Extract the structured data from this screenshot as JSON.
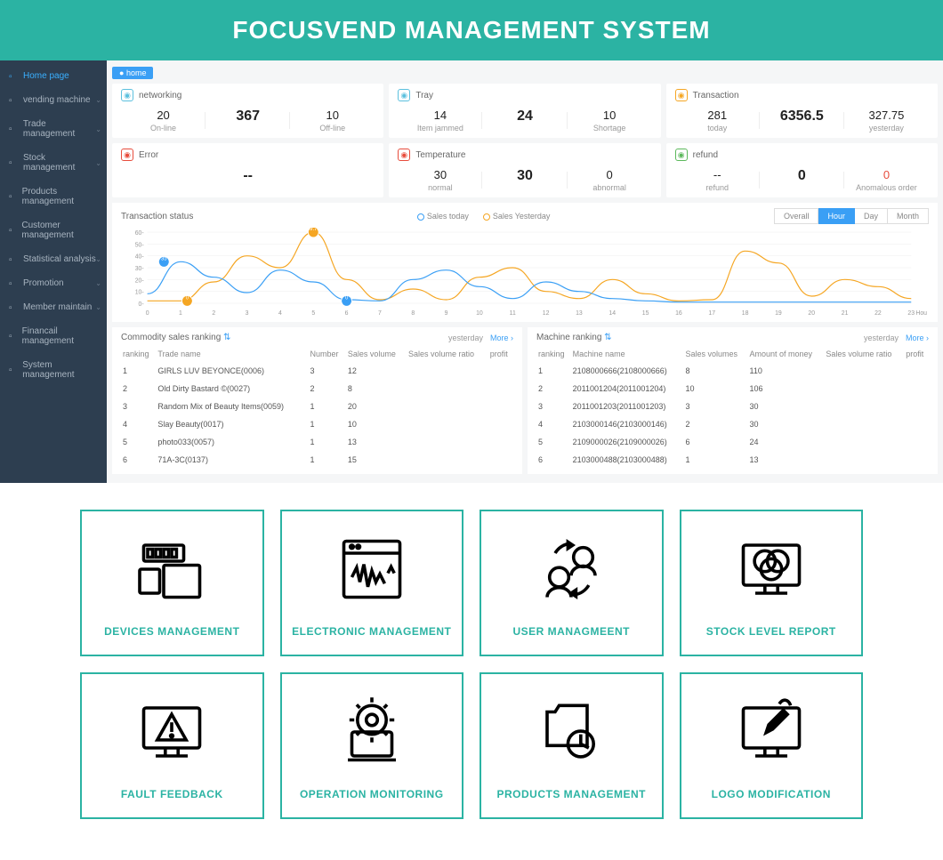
{
  "banner": {
    "title": "FOCUSVEND MANAGEMENT SYSTEM"
  },
  "colors": {
    "brand": "#2bb3a3",
    "sidebar": "#2d3e50",
    "primary_blue": "#3a9ff5",
    "orange": "#f5a623",
    "red": "#e74c3c",
    "grid": "#eeeeee",
    "text_muted": "#999999"
  },
  "sidebar": {
    "items": [
      {
        "label": "Home page",
        "active": true,
        "chevron": false
      },
      {
        "label": "vending machine",
        "active": false,
        "chevron": true
      },
      {
        "label": "Trade management",
        "active": false,
        "chevron": true
      },
      {
        "label": "Stock management",
        "active": false,
        "chevron": true
      },
      {
        "label": "Products management",
        "active": false,
        "chevron": false
      },
      {
        "label": "Customer management",
        "active": false,
        "chevron": false
      },
      {
        "label": "Statistical analysis",
        "active": false,
        "chevron": true
      },
      {
        "label": "Promotion",
        "active": false,
        "chevron": true
      },
      {
        "label": "Member maintain",
        "active": false,
        "chevron": true
      },
      {
        "label": "Financail management",
        "active": false,
        "chevron": false
      },
      {
        "label": "System management",
        "active": false,
        "chevron": false
      }
    ]
  },
  "breadcrumb": {
    "home": "home"
  },
  "cards": {
    "networking": {
      "title": "networking",
      "icon_color": "#5bc0de",
      "stats": [
        {
          "value": "20",
          "label": "On-line"
        },
        {
          "value": "367",
          "label": "",
          "big": true
        },
        {
          "value": "10",
          "label": "Off-line"
        }
      ]
    },
    "tray": {
      "title": "Tray",
      "icon_color": "#5bc0de",
      "stats": [
        {
          "value": "14",
          "label": "Item jammed"
        },
        {
          "value": "24",
          "label": "",
          "big": true
        },
        {
          "value": "10",
          "label": "Shortage"
        }
      ]
    },
    "transaction": {
      "title": "Transaction",
      "icon_color": "#f5a623",
      "stats": [
        {
          "value": "281",
          "label": "today"
        },
        {
          "value": "6356.5",
          "label": "",
          "big": true
        },
        {
          "value": "327.75",
          "label": "yesterday"
        }
      ]
    },
    "error": {
      "title": "Error",
      "icon_color": "#e74c3c",
      "stats": [
        {
          "value": "--",
          "label": "",
          "big": true
        }
      ]
    },
    "temperature": {
      "title": "Temperature",
      "icon_color": "#e74c3c",
      "stats": [
        {
          "value": "30",
          "label": "normal"
        },
        {
          "value": "30",
          "label": "",
          "big": true
        },
        {
          "value": "0",
          "label": "abnormal"
        }
      ]
    },
    "refund": {
      "title": "refund",
      "icon_color": "#5cb85c",
      "stats": [
        {
          "value": "--",
          "label": "refund"
        },
        {
          "value": "0",
          "label": "",
          "big": true
        },
        {
          "value": "0",
          "label": "Anomalous order",
          "red": true
        }
      ]
    }
  },
  "chart": {
    "title": "Transaction status",
    "legend": [
      {
        "label": "Sales today",
        "color": "#3a9ff5"
      },
      {
        "label": "Sales Yesterday",
        "color": "#f5a623"
      }
    ],
    "tabs": [
      "Overall",
      "Hour",
      "Day",
      "Month"
    ],
    "active_tab": "Hour",
    "x_labels": [
      "0",
      "1",
      "2",
      "3",
      "4",
      "5",
      "6",
      "7",
      "8",
      "9",
      "10",
      "11",
      "12",
      "13",
      "14",
      "15",
      "16",
      "17",
      "18",
      "19",
      "20",
      "21",
      "22",
      "23"
    ],
    "x_axis_unit": "Hou",
    "y_ticks": [
      0,
      10,
      20,
      30,
      40,
      50,
      60
    ],
    "ylim_max": 60,
    "xlim_max": 23,
    "markers": [
      {
        "x": 0.5,
        "y": 35,
        "label": "35",
        "color": "#3a9ff5"
      },
      {
        "x": 1.2,
        "y": 2,
        "label": "0",
        "color": "#f5a623"
      },
      {
        "x": 5.0,
        "y": 60,
        "label": "59.75",
        "color": "#f5a623"
      },
      {
        "x": 6.0,
        "y": 2,
        "label": "0",
        "color": "#3a9ff5"
      }
    ],
    "series_today": [
      8,
      35,
      22,
      9,
      28,
      18,
      3,
      2,
      20,
      28,
      14,
      4,
      18,
      10,
      4,
      2,
      1,
      1,
      1,
      1,
      1,
      1,
      1,
      1
    ],
    "series_yesterday": [
      2,
      2,
      18,
      40,
      30,
      60,
      20,
      3,
      12,
      3,
      22,
      30,
      10,
      4,
      20,
      8,
      2,
      3,
      44,
      34,
      6,
      20,
      14,
      4
    ]
  },
  "commodity_ranking": {
    "title": "Commodity sales ranking",
    "period": "yesterday",
    "more": "More",
    "columns": [
      "ranking",
      "Trade name",
      "Number",
      "Sales volume",
      "Sales volume ratio",
      "profit"
    ],
    "rows": [
      [
        "1",
        "GIRLS LUV BEYONCE(0006)",
        "3",
        "12",
        "",
        ""
      ],
      [
        "2",
        "Old Dirty Bastard ©(0027)",
        "2",
        "8",
        "",
        ""
      ],
      [
        "3",
        "Random Mix of Beauty Items(0059)",
        "1",
        "20",
        "",
        ""
      ],
      [
        "4",
        "Slay Beauty(0017)",
        "1",
        "10",
        "",
        ""
      ],
      [
        "5",
        "photo033(0057)",
        "1",
        "13",
        "",
        ""
      ],
      [
        "6",
        "71A-3C(0137)",
        "1",
        "15",
        "",
        ""
      ]
    ]
  },
  "machine_ranking": {
    "title": "Machine ranking",
    "period": "yesterday",
    "more": "More",
    "columns": [
      "ranking",
      "Machine name",
      "Sales volumes",
      "Amount of money",
      "Sales volume ratio",
      "profit"
    ],
    "rows": [
      [
        "1",
        "2108000666(2108000666)",
        "8",
        "110",
        "",
        ""
      ],
      [
        "2",
        "2011001204(2011001204)",
        "10",
        "106",
        "",
        ""
      ],
      [
        "3",
        "2011001203(2011001203)",
        "3",
        "30",
        "",
        ""
      ],
      [
        "4",
        "2103000146(2103000146)",
        "2",
        "30",
        "",
        ""
      ],
      [
        "5",
        "2109000026(2109000026)",
        "6",
        "24",
        "",
        ""
      ],
      [
        "6",
        "2103000488(2103000488)",
        "1",
        "13",
        "",
        ""
      ]
    ]
  },
  "features": [
    {
      "label": "DEVICES MANAGEMENT",
      "icon": "devices"
    },
    {
      "label": "ELECTRONIC MANAGEMENT",
      "icon": "electronic"
    },
    {
      "label": "USER MANAGMEENT",
      "icon": "user"
    },
    {
      "label": "STOCK LEVEL REPORT",
      "icon": "stock"
    },
    {
      "label": "FAULT FEEDBACK",
      "icon": "fault"
    },
    {
      "label": "OPERATION MONITORING",
      "icon": "operation"
    },
    {
      "label": "PRODUCTS MANAGEMENT",
      "icon": "products"
    },
    {
      "label": "LOGO MODIFICATION",
      "icon": "logo"
    }
  ]
}
